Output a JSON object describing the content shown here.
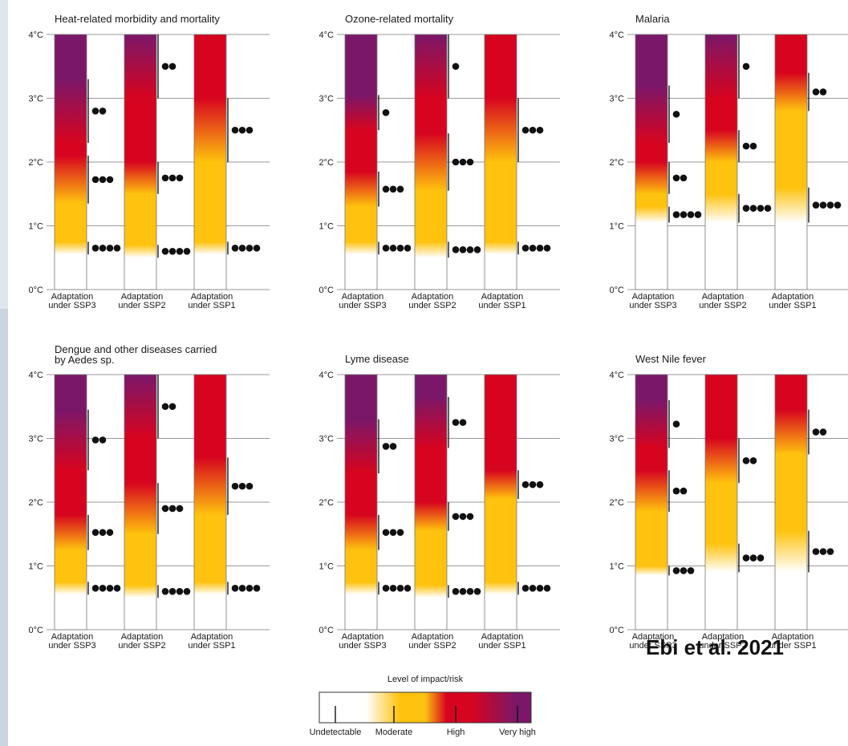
{
  "chart_data": {
    "type": "heatmap",
    "y_unit": "°C",
    "ylim": [
      0,
      4
    ],
    "y_ticks": [
      "0°C",
      "1°C",
      "2°C",
      "3°C",
      "4°C"
    ],
    "categories": [
      "Adaptation under SSP3",
      "Adaptation under SSP2",
      "Adaptation under SSP1"
    ],
    "category_lines": [
      [
        "Adaptation",
        "under SSP3"
      ],
      [
        "Adaptation",
        "under SSP2"
      ],
      [
        "Adaptation",
        "under SSP1"
      ]
    ],
    "risk_levels": [
      "Undetectable",
      "Moderate",
      "High",
      "Very high"
    ],
    "risk_colors": {
      "undetectable": "#ffffff",
      "moderate": "#ffc20e",
      "high": "#d7041f",
      "very_high": "#7b1769"
    },
    "legend": {
      "title": "Level of impact/risk",
      "placement": "bottom-center"
    },
    "panels": [
      {
        "title_lines": [
          "Heat-related morbidity and mortality"
        ],
        "bars": [
          {
            "transitions": [
              {
                "from": 0.55,
                "to": 0.75,
                "confidence": 4
              },
              {
                "from": 1.35,
                "to": 2.1,
                "confidence": 3
              },
              {
                "from": 2.3,
                "to": 3.3,
                "confidence": 2
              }
            ]
          },
          {
            "transitions": [
              {
                "from": 0.5,
                "to": 0.7,
                "confidence": 4
              },
              {
                "from": 1.5,
                "to": 2.0,
                "confidence": 3
              },
              {
                "from": 3.0,
                "to": 4.0,
                "confidence": 2
              }
            ]
          },
          {
            "transitions": [
              {
                "from": 0.55,
                "to": 0.75,
                "confidence": 4
              },
              {
                "from": 2.0,
                "to": 3.0,
                "confidence": 3
              }
            ]
          }
        ]
      },
      {
        "title_lines": [
          "Ozone-related mortality"
        ],
        "bars": [
          {
            "transitions": [
              {
                "from": 0.55,
                "to": 0.75,
                "confidence": 4
              },
              {
                "from": 1.3,
                "to": 1.85,
                "confidence": 3
              },
              {
                "from": 2.5,
                "to": 3.05,
                "confidence": 1
              }
            ]
          },
          {
            "transitions": [
              {
                "from": 0.5,
                "to": 0.75,
                "confidence": 4
              },
              {
                "from": 1.55,
                "to": 2.45,
                "confidence": 3
              },
              {
                "from": 3.0,
                "to": 4.0,
                "confidence": 1
              }
            ]
          },
          {
            "transitions": [
              {
                "from": 0.55,
                "to": 0.75,
                "confidence": 4
              },
              {
                "from": 2.0,
                "to": 3.0,
                "confidence": 3
              }
            ]
          }
        ]
      },
      {
        "title_lines": [
          "Malaria"
        ],
        "bars": [
          {
            "transitions": [
              {
                "from": 1.05,
                "to": 1.3,
                "confidence": 4
              },
              {
                "from": 1.5,
                "to": 2.0,
                "confidence": 2
              },
              {
                "from": 2.3,
                "to": 3.2,
                "confidence": 1
              }
            ]
          },
          {
            "transitions": [
              {
                "from": 1.05,
                "to": 1.5,
                "confidence": 4
              },
              {
                "from": 2.0,
                "to": 2.5,
                "confidence": 2
              },
              {
                "from": 3.0,
                "to": 4.0,
                "confidence": 1
              }
            ]
          },
          {
            "transitions": [
              {
                "from": 1.05,
                "to": 1.6,
                "confidence": 4
              },
              {
                "from": 2.8,
                "to": 3.4,
                "confidence": 2
              }
            ]
          }
        ]
      },
      {
        "title_lines": [
          "Dengue and other diseases carried",
          "by Aedes sp."
        ],
        "bars": [
          {
            "transitions": [
              {
                "from": 0.55,
                "to": 0.75,
                "confidence": 4
              },
              {
                "from": 1.25,
                "to": 1.8,
                "confidence": 3
              },
              {
                "from": 2.5,
                "to": 3.45,
                "confidence": 2
              }
            ]
          },
          {
            "transitions": [
              {
                "from": 0.5,
                "to": 0.7,
                "confidence": 4
              },
              {
                "from": 1.5,
                "to": 2.3,
                "confidence": 3
              },
              {
                "from": 3.0,
                "to": 4.0,
                "confidence": 2
              }
            ]
          },
          {
            "transitions": [
              {
                "from": 0.55,
                "to": 0.75,
                "confidence": 4
              },
              {
                "from": 1.8,
                "to": 2.7,
                "confidence": 3
              }
            ]
          }
        ]
      },
      {
        "title_lines": [
          "Lyme disease"
        ],
        "bars": [
          {
            "transitions": [
              {
                "from": 0.55,
                "to": 0.75,
                "confidence": 4
              },
              {
                "from": 1.25,
                "to": 1.8,
                "confidence": 3
              },
              {
                "from": 2.45,
                "to": 3.3,
                "confidence": 2
              }
            ]
          },
          {
            "transitions": [
              {
                "from": 0.5,
                "to": 0.7,
                "confidence": 4
              },
              {
                "from": 1.55,
                "to": 2.0,
                "confidence": 3
              },
              {
                "from": 2.85,
                "to": 3.65,
                "confidence": 2
              }
            ]
          },
          {
            "transitions": [
              {
                "from": 0.55,
                "to": 0.75,
                "confidence": 4
              },
              {
                "from": 2.05,
                "to": 2.5,
                "confidence": 3
              }
            ]
          }
        ]
      },
      {
        "title_lines": [
          "West Nile fever"
        ],
        "bars": [
          {
            "transitions": [
              {
                "from": 0.85,
                "to": 1.0,
                "confidence": 3
              },
              {
                "from": 1.85,
                "to": 2.5,
                "confidence": 2
              },
              {
                "from": 2.85,
                "to": 3.6,
                "confidence": 1
              }
            ]
          },
          {
            "transitions": [
              {
                "from": 0.9,
                "to": 1.35,
                "confidence": 3
              },
              {
                "from": 2.3,
                "to": 3.0,
                "confidence": 2
              }
            ]
          },
          {
            "transitions": [
              {
                "from": 0.9,
                "to": 1.55,
                "confidence": 3
              },
              {
                "from": 2.75,
                "to": 3.45,
                "confidence": 2
              }
            ]
          }
        ]
      }
    ]
  },
  "credit": "Ebi et al. 2021"
}
